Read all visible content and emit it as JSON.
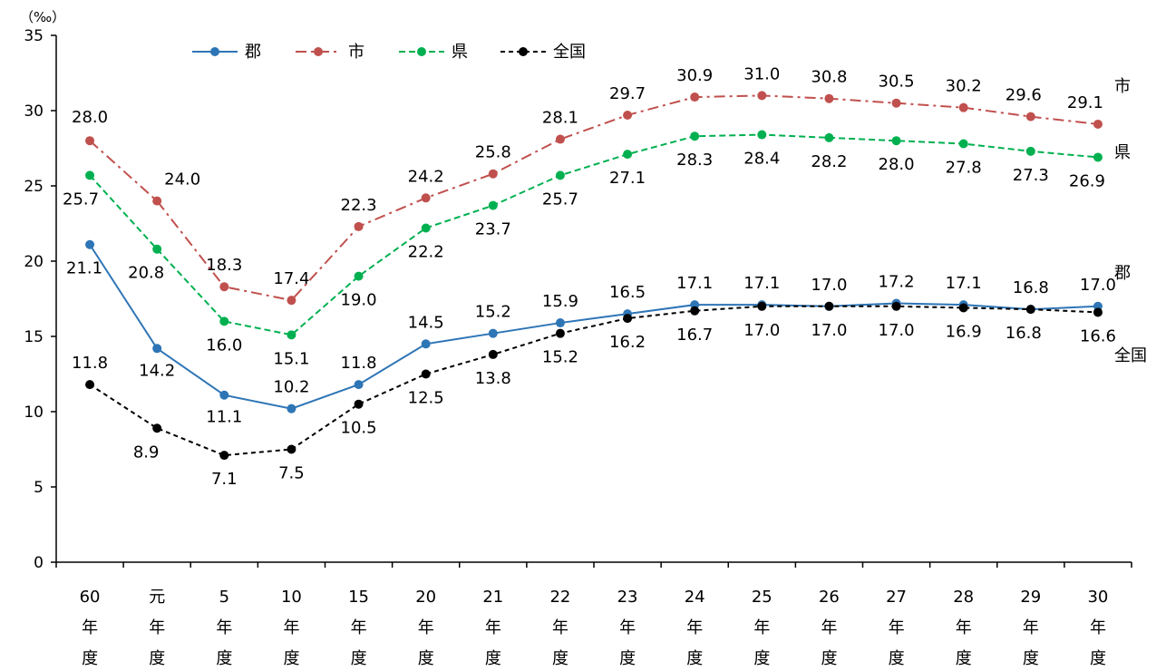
{
  "chart_data": {
    "type": "line",
    "unit_label": "（‰）",
    "categories": [
      [
        "60",
        "年",
        "度"
      ],
      [
        "元",
        "年",
        "度"
      ],
      [
        "5",
        "年",
        "度"
      ],
      [
        "10",
        "年",
        "度"
      ],
      [
        "15",
        "年",
        "度"
      ],
      [
        "20",
        "年",
        "度"
      ],
      [
        "21",
        "年",
        "度"
      ],
      [
        "22",
        "年",
        "度"
      ],
      [
        "23",
        "年",
        "度"
      ],
      [
        "24",
        "年",
        "度"
      ],
      [
        "25",
        "年",
        "度"
      ],
      [
        "26",
        "年",
        "度"
      ],
      [
        "27",
        "年",
        "度"
      ],
      [
        "28",
        "年",
        "度"
      ],
      [
        "29",
        "年",
        "度"
      ],
      [
        "30",
        "年",
        "度"
      ]
    ],
    "ylim": [
      0,
      35
    ],
    "yticks": [
      "0",
      "5",
      "10",
      "15",
      "20",
      "25",
      "30",
      "35"
    ],
    "legend_position": "top-left",
    "grid": false,
    "series": [
      {
        "name": "郡",
        "end_label": "郡",
        "color": "#2e75b6",
        "style": "solid",
        "values": [
          21.1,
          14.2,
          11.1,
          10.2,
          11.8,
          14.5,
          15.2,
          15.9,
          16.5,
          17.1,
          17.1,
          17.0,
          17.2,
          17.1,
          16.8,
          17.0
        ],
        "labels": [
          "21.1",
          "14.2",
          "11.1",
          "10.2",
          "11.8",
          "14.5",
          "15.2",
          "15.9",
          "16.5",
          "17.1",
          "17.1",
          "17.0",
          "17.2",
          "17.1",
          "16.8",
          "17.0"
        ]
      },
      {
        "name": "市",
        "end_label": "市",
        "color": "#c0504d",
        "style": "dashdot",
        "values": [
          28.0,
          24.0,
          18.3,
          17.4,
          22.3,
          24.2,
          25.8,
          28.1,
          29.7,
          30.9,
          31.0,
          30.8,
          30.5,
          30.2,
          29.6,
          29.1
        ],
        "labels": [
          "28.0",
          "24.0",
          "18.3",
          "17.4",
          "22.3",
          "24.2",
          "25.8",
          "28.1",
          "29.7",
          "30.9",
          "31.0",
          "30.8",
          "30.5",
          "30.2",
          "29.6",
          "29.1"
        ]
      },
      {
        "name": "県",
        "end_label": "県",
        "color": "#00b050",
        "style": "dashed",
        "values": [
          25.7,
          20.8,
          16.0,
          15.1,
          19.0,
          22.2,
          23.7,
          25.7,
          27.1,
          28.3,
          28.4,
          28.2,
          28.0,
          27.8,
          27.3,
          26.9
        ],
        "labels": [
          "25.7",
          "20.8",
          "16.0",
          "15.1",
          "19.0",
          "22.2",
          "23.7",
          "25.7",
          "27.1",
          "28.3",
          "28.4",
          "28.2",
          "28.0",
          "27.8",
          "27.3",
          "26.9"
        ]
      },
      {
        "name": "全国",
        "end_label": "全国",
        "color": "#000000",
        "style": "shortdash",
        "values": [
          11.8,
          8.9,
          7.1,
          7.5,
          10.5,
          12.5,
          13.8,
          15.2,
          16.2,
          16.7,
          17.0,
          17.0,
          17.0,
          16.9,
          16.8,
          16.6
        ],
        "labels": [
          "11.8",
          "8.9",
          "7.1",
          "7.5",
          "10.5",
          "12.5",
          "13.8",
          "15.2",
          "16.2",
          "16.7",
          "17.0",
          "17.0",
          "17.0",
          "16.9",
          "16.8",
          "16.6"
        ]
      }
    ]
  }
}
